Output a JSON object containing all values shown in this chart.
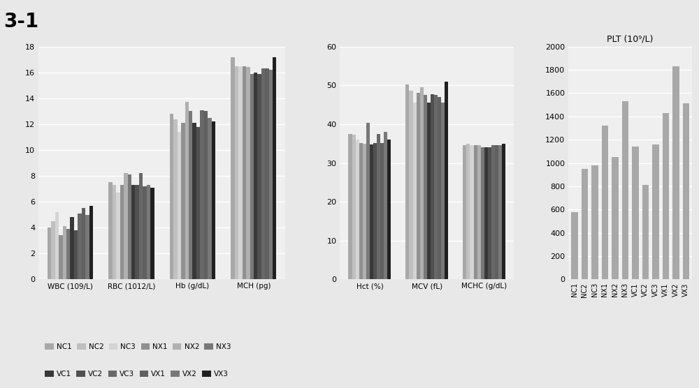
{
  "series_names": [
    "NC1",
    "NC2",
    "NC3",
    "NX1",
    "NX2",
    "NX3",
    "VC1",
    "VC2",
    "VC3",
    "VX1",
    "VX2",
    "VX3"
  ],
  "colors": [
    "#a8a8a8",
    "#c0c0c0",
    "#d4d4d4",
    "#909090",
    "#b0b0b0",
    "#787878",
    "#383838",
    "#505050",
    "#686868",
    "#606060",
    "#787878",
    "#202020"
  ],
  "panel1": {
    "categories": [
      "WBC (109/L)",
      "RBC (1012/L)",
      "Hb (g/dL)",
      "MCH (pg)"
    ],
    "ylim": [
      0,
      18
    ],
    "yticks": [
      0,
      2,
      4,
      6,
      8,
      10,
      12,
      14,
      16,
      18
    ],
    "data": {
      "WBC (109/L)": [
        4.0,
        4.5,
        5.2,
        3.4,
        4.1,
        3.9,
        4.8,
        3.8,
        5.1,
        5.5,
        5.0,
        5.7
      ],
      "RBC (1012/L)": [
        7.5,
        7.3,
        6.7,
        7.3,
        8.2,
        8.1,
        7.3,
        7.3,
        8.2,
        7.2,
        7.3,
        7.1
      ],
      "Hb (g/dL)": [
        12.8,
        12.4,
        11.4,
        12.1,
        13.7,
        13.0,
        12.1,
        11.8,
        13.1,
        13.0,
        12.5,
        12.2
      ],
      "MCH (pg)": [
        17.2,
        16.5,
        16.5,
        16.5,
        16.4,
        15.9,
        16.0,
        15.9,
        16.3,
        16.3,
        16.2,
        17.2
      ]
    }
  },
  "panel2": {
    "categories": [
      "Hct (%)",
      "MCV (fL)",
      "MCHC (g/dL)"
    ],
    "ylim": [
      0,
      60
    ],
    "yticks": [
      0,
      10,
      20,
      30,
      40,
      50,
      60
    ],
    "data": {
      "Hct (%)": [
        37.5,
        37.3,
        36.0,
        35.2,
        35.0,
        40.4,
        34.7,
        35.2,
        37.5,
        35.2,
        38.0,
        36.0
      ],
      "MCV (fL)": [
        50.3,
        48.7,
        45.5,
        48.0,
        49.5,
        47.5,
        45.5,
        47.7,
        47.5,
        47.0,
        45.5,
        51.0
      ],
      "MCHC (g/dL)": [
        34.5,
        35.0,
        34.5,
        34.5,
        34.5,
        34.0,
        34.0,
        34.0,
        34.5,
        34.5,
        34.5,
        35.0
      ]
    }
  },
  "panel3": {
    "title": "PLT (10⁹/L)",
    "ylim": [
      0,
      2000
    ],
    "yticks": [
      0,
      200,
      400,
      600,
      800,
      1000,
      1200,
      1400,
      1600,
      1800,
      2000
    ],
    "data": [
      580,
      950,
      980,
      1320,
      1050,
      1530,
      1140,
      810,
      1160,
      1430,
      1830,
      1510
    ],
    "bar_color": "#a8a8a8"
  },
  "title": "3-1",
  "background": "#e8e8e8",
  "plot_bg": "#efefef"
}
